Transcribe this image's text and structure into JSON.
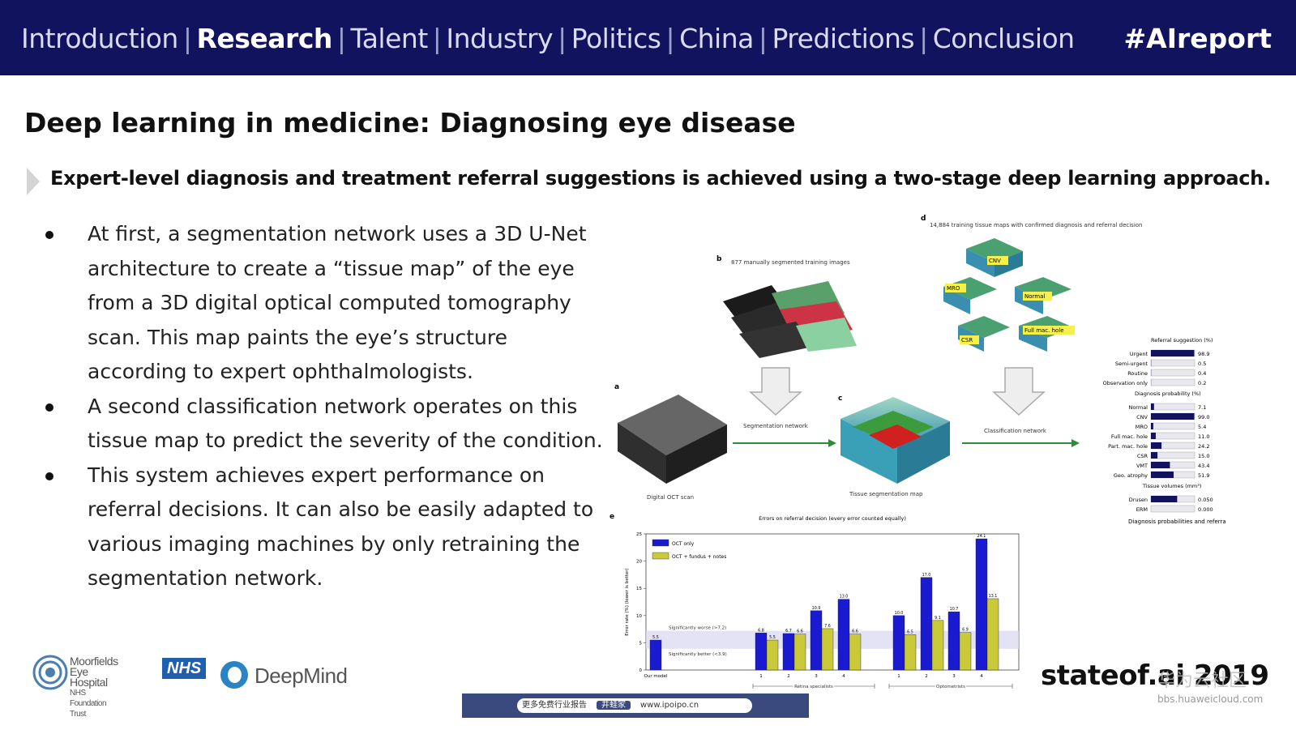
{
  "nav": {
    "items": [
      {
        "label": "Introduction",
        "active": false
      },
      {
        "label": "Research",
        "active": true
      },
      {
        "label": "Talent",
        "active": false
      },
      {
        "label": "Industry",
        "active": false
      },
      {
        "label": "Politics",
        "active": false
      },
      {
        "label": "China",
        "active": false
      },
      {
        "label": "Predictions",
        "active": false
      },
      {
        "label": "Conclusion",
        "active": false
      }
    ],
    "separator": "|",
    "hashtag": "#AIreport"
  },
  "slide": {
    "title": "Deep learning in medicine: Diagnosing eye disease",
    "subtitle": "Expert-level diagnosis and treatment referral suggestions is achieved using a two-stage deep learning approach.",
    "bullets": [
      "At first, a segmentation network uses a 3D U-Net architecture to create a “tissue map” of the eye from a 3D digital optical computed tomography scan. This map paints the eye’s structure according to expert ophthalmologists.",
      "A second classification network operates on this tissue map to predict the severity of the condition.",
      "This system achieves expert performance on referral decisions. It can also be easily adapted to various imaging machines by only retraining the segmentation network."
    ]
  },
  "figure": {
    "panel_labels": [
      "a",
      "b",
      "c",
      "d",
      "e"
    ],
    "b_caption": "877 manually segmented training images",
    "d_caption": "14,884 training tissue maps with confirmed diagnosis and referral decision",
    "scan_label": "Digital OCT scan",
    "seg_net_label": "Segmentation network",
    "tissue_map_label": "Tissue segmentation map",
    "class_net_label": "Classification network",
    "tissue_tags": [
      "CNV",
      "MRO",
      "Normal",
      "Full mac. hole",
      "CSR"
    ],
    "referral_title": "Referral suggestion (%)",
    "referral": [
      {
        "label": "Urgent",
        "value": "98.9",
        "fill": 0.989
      },
      {
        "label": "Semi-urgent",
        "value": "0.5",
        "fill": 0.005
      },
      {
        "label": "Routine",
        "value": "0.4",
        "fill": 0.004
      },
      {
        "label": "Observation only",
        "value": "0.2",
        "fill": 0.002
      }
    ],
    "diag_title": "Diagnosis probability (%)",
    "diagnosis": [
      {
        "label": "Normal",
        "value": "7.1",
        "fill": 0.071
      },
      {
        "label": "CNV",
        "value": "99.0",
        "fill": 0.99
      },
      {
        "label": "MRO",
        "value": "5.4",
        "fill": 0.054
      },
      {
        "label": "Full mac. hole",
        "value": "11.0",
        "fill": 0.11
      },
      {
        "label": "Part. mac. hole",
        "value": "24.2",
        "fill": 0.242
      },
      {
        "label": "CSR",
        "value": "15.0",
        "fill": 0.15
      },
      {
        "label": "VMT",
        "value": "43.4",
        "fill": 0.434
      },
      {
        "label": "Geo. atrophy",
        "value": "51.9",
        "fill": 0.519
      }
    ],
    "volume_title": "Tissue volumes (mm³)",
    "volumes": [
      {
        "label": "Drusen",
        "value": "0.050",
        "fill": 0.6
      },
      {
        "label": "ERM",
        "value": "0.000",
        "fill": 0.0
      }
    ],
    "summary_caption": "Diagnosis probabilities and referral suggestion",
    "colors": {
      "blue": "#1a1ad0",
      "yellow": "#c9c93a",
      "accent": "#12135e"
    }
  },
  "chart_data": {
    "type": "bar",
    "title": "Errors on referral decision (every error counted equally)",
    "ylabel": "Error rate (%) (lower is better)",
    "ylim": [
      0,
      25
    ],
    "yticks": [
      0,
      5,
      10,
      15,
      20,
      25
    ],
    "categories": [
      "Our model",
      "1",
      "2",
      "3",
      "4",
      "1",
      "2",
      "3",
      "4"
    ],
    "group_labels": [
      "Retina specialists",
      "Optometrists"
    ],
    "series": [
      {
        "name": "OCT only",
        "values": [
          5.5,
          6.8,
          6.7,
          10.9,
          13.0,
          10.0,
          17.0,
          10.7,
          24.1
        ]
      },
      {
        "name": "OCT + fundus + notes",
        "values": [
          null,
          5.5,
          6.6,
          7.6,
          6.6,
          6.5,
          9.1,
          6.9,
          13.1
        ]
      }
    ],
    "reference_bands": [
      {
        "label": "Significantly worse (>7.2)",
        "value": 7.2
      },
      {
        "label": "Significantly better (<3.9)",
        "value": 3.9
      }
    ]
  },
  "footer": {
    "logo_moorfields_line1": "Moorfields",
    "logo_moorfields_line2": "Eye Hospital",
    "logo_moorfields_line3": "NHS Foundation Trust",
    "logo_nhs": "NHS",
    "logo_deepmind": "DeepMind",
    "brand": "stateof.ai 2019",
    "watermark_cn": "华为云社区",
    "watermark_url": "bbs.huaweicloud.com",
    "banner_left": "更多免费行业报告",
    "banner_chip": "井蛙家",
    "banner_url": "www.ipoipo.cn"
  }
}
